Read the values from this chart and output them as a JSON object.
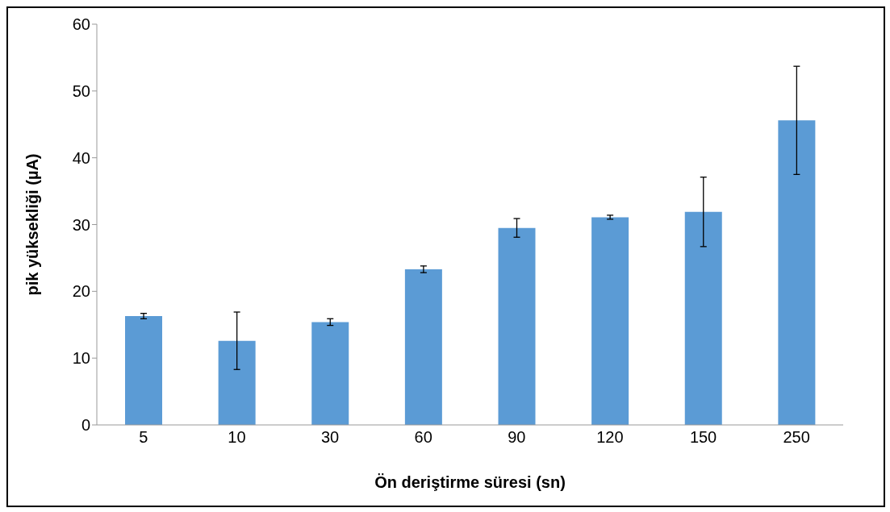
{
  "chart_data": {
    "type": "bar",
    "xlabel": "Ön deriştirme süresi (sn)",
    "ylabel": "pik yüksekliği (µA)",
    "categories": [
      "5",
      "10",
      "30",
      "60",
      "90",
      "120",
      "150",
      "250"
    ],
    "values": [
      16.3,
      12.6,
      15.4,
      23.3,
      29.5,
      31.1,
      31.9,
      45.6
    ],
    "errors": [
      0.4,
      4.3,
      0.5,
      0.5,
      1.4,
      0.3,
      5.2,
      8.1
    ],
    "color": "#5b9bd5",
    "ylim": [
      0,
      60
    ],
    "yticks": [
      0,
      10,
      20,
      30,
      40,
      50,
      60
    ],
    "grid": false,
    "legend": false
  }
}
